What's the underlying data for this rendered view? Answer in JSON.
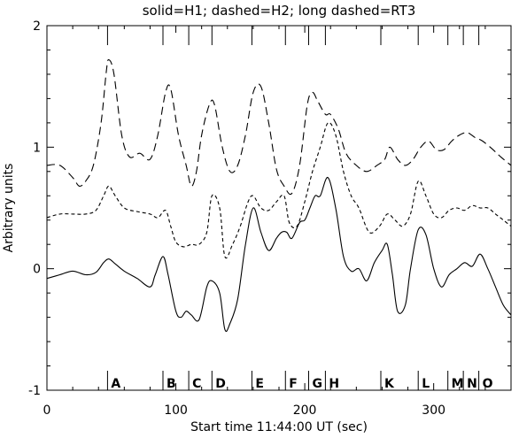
{
  "chart_data": {
    "type": "line",
    "title": "solid=H1; dashed=H2; long dashed=RT3",
    "xlabel": "Start time 11:44:00 UT (sec)",
    "ylabel": "Arbitrary units",
    "xlim": [
      0,
      360
    ],
    "ylim": [
      -1,
      2
    ],
    "xticks": [
      0,
      100,
      200,
      300
    ],
    "yticks": [
      -1,
      0,
      1,
      2
    ],
    "grid": false,
    "events": [
      {
        "label": "A",
        "x": 47
      },
      {
        "label": "B",
        "x": 90
      },
      {
        "label": "C",
        "x": 110
      },
      {
        "label": "D",
        "x": 128
      },
      {
        "label": "E",
        "x": 159
      },
      {
        "label": "F",
        "x": 185
      },
      {
        "label": "G",
        "x": 203
      },
      {
        "label": "H",
        "x": 216
      },
      {
        "label": "K",
        "x": 259
      },
      {
        "label": "L",
        "x": 288
      },
      {
        "label": "M",
        "x": 311
      },
      {
        "label": "N",
        "x": 323
      },
      {
        "label": "O",
        "x": 335
      }
    ],
    "series": [
      {
        "name": "H1",
        "style": "solid",
        "x": [
          0,
          10,
          20,
          30,
          38,
          44,
          48,
          53,
          60,
          70,
          80,
          84,
          90,
          94,
          100,
          104,
          108,
          112,
          118,
          124,
          128,
          134,
          138,
          142,
          148,
          154,
          160,
          166,
          172,
          178,
          182,
          186,
          190,
          196,
          200,
          204,
          208,
          212,
          218,
          224,
          230,
          236,
          242,
          248,
          254,
          260,
          264,
          268,
          272,
          278,
          282,
          288,
          294,
          300,
          306,
          312,
          318,
          324,
          330,
          336,
          342,
          348,
          354,
          360
        ],
        "y": [
          -0.08,
          -0.05,
          -0.02,
          -0.05,
          -0.03,
          0.05,
          0.08,
          0.04,
          -0.02,
          -0.08,
          -0.15,
          -0.05,
          0.1,
          -0.05,
          -0.35,
          -0.4,
          -0.35,
          -0.38,
          -0.42,
          -0.15,
          -0.1,
          -0.2,
          -0.5,
          -0.45,
          -0.25,
          0.2,
          0.5,
          0.3,
          0.15,
          0.25,
          0.3,
          0.3,
          0.25,
          0.38,
          0.4,
          0.5,
          0.6,
          0.6,
          0.75,
          0.5,
          0.1,
          -0.02,
          0.0,
          -0.1,
          0.05,
          0.15,
          0.2,
          -0.05,
          -0.35,
          -0.3,
          0.0,
          0.32,
          0.28,
          0.0,
          -0.15,
          -0.05,
          0.0,
          0.05,
          0.02,
          0.12,
          0.0,
          -0.15,
          -0.3,
          -0.38
        ]
      },
      {
        "name": "H2",
        "style": "dashed",
        "x": [
          0,
          10,
          20,
          30,
          38,
          44,
          48,
          53,
          60,
          70,
          80,
          86,
          92,
          96,
          100,
          106,
          112,
          118,
          124,
          128,
          134,
          138,
          144,
          150,
          156,
          160,
          166,
          172,
          178,
          184,
          188,
          194,
          200,
          206,
          212,
          218,
          224,
          230,
          236,
          242,
          250,
          258,
          264,
          270,
          276,
          282,
          288,
          294,
          300,
          306,
          312,
          318,
          324,
          330,
          336,
          342,
          348,
          354,
          360
        ],
        "y": [
          0.42,
          0.45,
          0.45,
          0.45,
          0.48,
          0.6,
          0.68,
          0.6,
          0.5,
          0.47,
          0.45,
          0.42,
          0.48,
          0.35,
          0.22,
          0.18,
          0.2,
          0.2,
          0.3,
          0.6,
          0.5,
          0.1,
          0.2,
          0.35,
          0.55,
          0.6,
          0.5,
          0.48,
          0.55,
          0.6,
          0.38,
          0.35,
          0.55,
          0.8,
          1.0,
          1.2,
          1.1,
          0.8,
          0.6,
          0.5,
          0.3,
          0.35,
          0.45,
          0.4,
          0.35,
          0.45,
          0.72,
          0.6,
          0.45,
          0.42,
          0.48,
          0.5,
          0.48,
          0.52,
          0.5,
          0.5,
          0.45,
          0.4,
          0.35
        ]
      },
      {
        "name": "RT3",
        "style": "long dashed",
        "x": [
          0,
          10,
          20,
          25,
          30,
          36,
          42,
          46,
          48,
          52,
          58,
          64,
          72,
          80,
          86,
          92,
          96,
          102,
          108,
          112,
          116,
          120,
          126,
          130,
          136,
          142,
          148,
          154,
          160,
          166,
          172,
          178,
          184,
          190,
          196,
          202,
          206,
          210,
          216,
          220,
          226,
          232,
          240,
          248,
          256,
          262,
          266,
          272,
          278,
          284,
          290,
          296,
          302,
          308,
          314,
          320,
          326,
          332,
          338,
          346,
          352,
          360
        ],
        "y": [
          0.85,
          0.85,
          0.75,
          0.68,
          0.72,
          0.85,
          1.2,
          1.62,
          1.72,
          1.6,
          1.1,
          0.92,
          0.95,
          0.9,
          1.1,
          1.45,
          1.48,
          1.1,
          0.85,
          0.68,
          0.8,
          1.1,
          1.35,
          1.35,
          1.0,
          0.8,
          0.85,
          1.1,
          1.45,
          1.5,
          1.2,
          0.82,
          0.68,
          0.62,
          0.85,
          1.35,
          1.45,
          1.38,
          1.27,
          1.27,
          1.15,
          0.95,
          0.85,
          0.8,
          0.85,
          0.9,
          1.0,
          0.9,
          0.85,
          0.9,
          1.0,
          1.05,
          0.98,
          0.98,
          1.05,
          1.1,
          1.12,
          1.08,
          1.05,
          0.98,
          0.92,
          0.85
        ]
      }
    ]
  }
}
